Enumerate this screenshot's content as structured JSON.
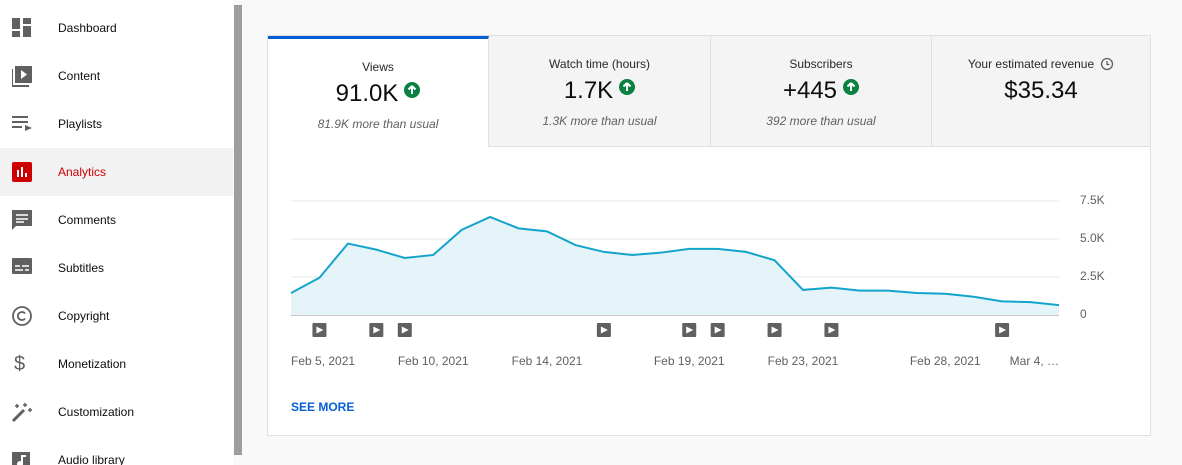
{
  "sidebar": {
    "items": [
      "Dashboard",
      "Content",
      "Playlists",
      "Analytics",
      "Comments",
      "Subtitles",
      "Copyright",
      "Monetization",
      "Customization",
      "Audio library"
    ]
  },
  "cards": [
    {
      "title": "Views",
      "value": "91.0K",
      "note": "81.9K more than usual"
    },
    {
      "title": "Watch time (hours)",
      "value": "1.7K",
      "note": "1.3K more than usual"
    },
    {
      "title": "Subscribers",
      "value": "+445",
      "note": "392 more than usual"
    },
    {
      "title": "Your estimated revenue",
      "value": "$35.34"
    }
  ],
  "chart_data": {
    "type": "area",
    "color": "#12a4cc",
    "fill": "#e4f4f9",
    "categories": [
      "Feb 5, 2021",
      null,
      null,
      null,
      null,
      "Feb 10, 2021",
      null,
      null,
      null,
      "Feb 14, 2021",
      null,
      null,
      null,
      null,
      "Feb 19, 2021",
      null,
      null,
      null,
      "Feb 23, 2021",
      null,
      null,
      null,
      null,
      "Feb 28, 2021",
      null,
      null,
      null,
      "Mar 4, …"
    ],
    "values": [
      1450,
      2450,
      4700,
      4300,
      3750,
      3950,
      5600,
      6450,
      5700,
      5500,
      4600,
      4150,
      3950,
      4100,
      4350,
      4350,
      4150,
      3600,
      1650,
      1800,
      1600,
      1600,
      1450,
      1400,
      1200,
      900,
      850,
      650
    ],
    "ylim": [
      0,
      7500
    ],
    "yticks": [
      0,
      {
        "value": 2500,
        "label": "2.5K"
      },
      {
        "value": 5000,
        "label": "5.0K"
      },
      {
        "value": 7500,
        "label": "7.5K"
      }
    ],
    "grid": true,
    "video_markers": [
      1,
      3,
      4,
      11,
      14,
      15,
      17,
      19,
      25
    ]
  },
  "link": "SEE MORE"
}
